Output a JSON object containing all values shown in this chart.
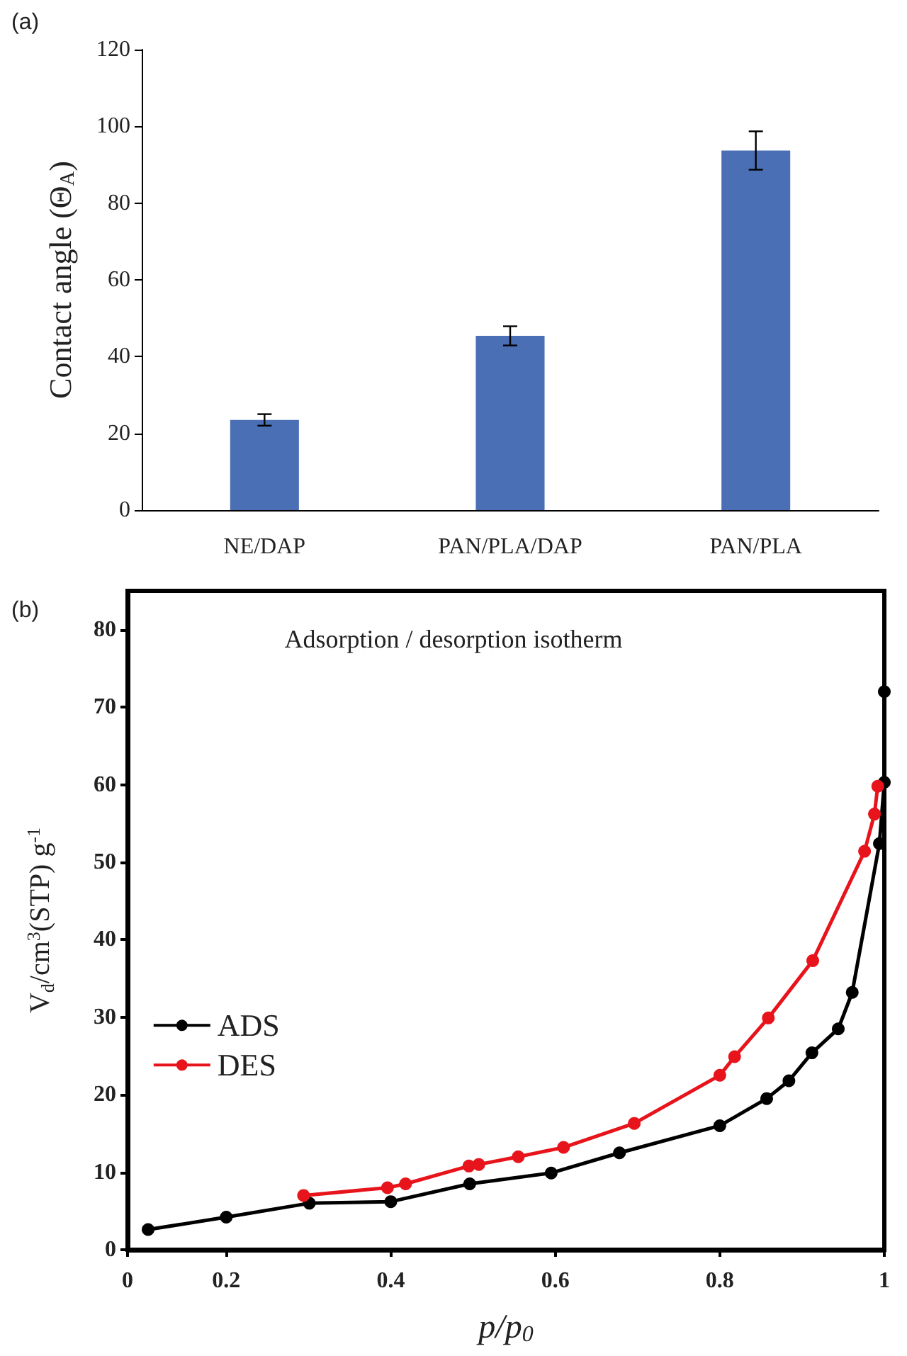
{
  "chart_data": [
    {
      "type": "bar",
      "ylabel": "Contact angle (Θ$_{A}$)",
      "annotations": [
        "(a)"
      ],
      "categories": [
        "NE/DAP",
        "PAN/PLA/DAP",
        "PAN/PLA"
      ],
      "values": [
        23.5,
        45.4,
        93.7
      ],
      "errors": [
        1.5,
        2.5,
        5
      ],
      "color": "#4a6fb5",
      "ylim": [
        0,
        120
      ],
      "yticks": [
        0,
        20,
        40,
        60,
        80,
        100,
        120
      ],
      "grid": false
    },
    {
      "type": "line",
      "title": "Adsorption / desorption isotherm",
      "xlabel": "p/p$_{0}$",
      "ylabel": "V$_{d}$/cm$^{3}$(STP) g$^{-1}$",
      "annotations": [
        "(b)"
      ],
      "xlim": [
        0.08,
        1
      ],
      "xticks": [
        {
          "value": 0.08,
          "label": "0"
        },
        0.2,
        0.4,
        0.6,
        0.8,
        1
      ],
      "ylim": [
        0,
        85
      ],
      "yticks": [
        0,
        10,
        20,
        30,
        40,
        50,
        60,
        70,
        80
      ],
      "grid": false,
      "legend": "left",
      "marker": "circle",
      "line_style": "solid",
      "series": [
        {
          "name": "ADS",
          "color": "#000000",
          "x": [
            0.105,
            0.2,
            0.301,
            0.4,
            0.496,
            0.595,
            0.678,
            0.8,
            0.857,
            0.884,
            0.912,
            0.944,
            0.961,
            0.994,
            1,
            1
          ],
          "values": [
            2.6,
            4.2,
            6.0,
            6.2,
            8.5,
            9.9,
            12.5,
            16.0,
            19.5,
            21.8,
            25.4,
            28.5,
            33.2,
            52.4,
            60.3,
            72
          ]
        },
        {
          "name": "DES",
          "color": "#e8141c",
          "x": [
            0.294,
            0.396,
            0.418,
            0.495,
            0.507,
            0.555,
            0.61,
            0.696,
            0.8,
            0.818,
            0.859,
            0.913,
            0.976,
            0.988,
            0.992
          ],
          "values": [
            7.0,
            8.0,
            8.5,
            10.8,
            11.0,
            12.0,
            13.2,
            16.3,
            22.5,
            24.9,
            29.9,
            37.3,
            51.4,
            56.2,
            59.8
          ]
        }
      ]
    }
  ]
}
